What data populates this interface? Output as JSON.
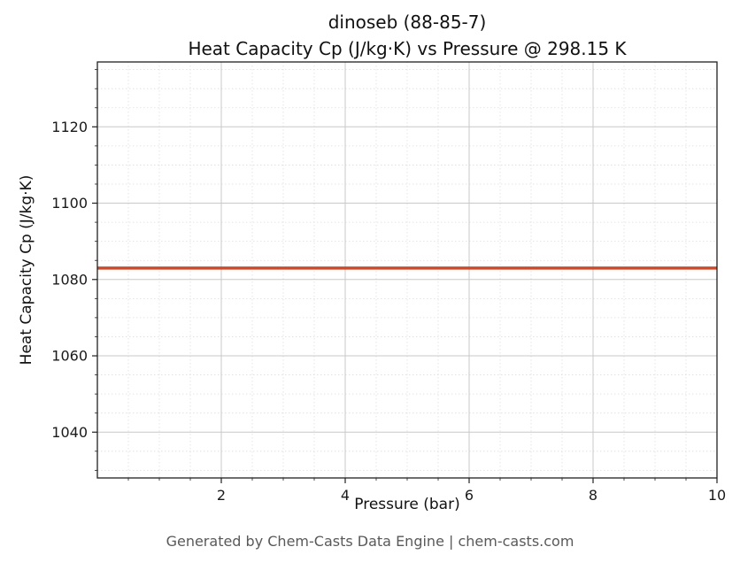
{
  "header": {
    "line1": "dinoseb (88-85-7)",
    "line2": "Heat Capacity Cp (J/kg·K) vs Pressure @ 298.15 K"
  },
  "footer": {
    "text": "Generated by Chem-Casts Data Engine | chem-casts.com"
  },
  "chart_data": {
    "type": "line",
    "title": "dinoseb (88-85-7) — Heat Capacity Cp (J/kg·K) vs Pressure @ 298.15 K",
    "xlabel": "Pressure (bar)",
    "ylabel": "Heat Capacity Cp (J/kg·K)",
    "series": [
      {
        "name": "Heat Capacity Cp",
        "x": [
          0,
          1,
          2,
          3,
          4,
          5,
          6,
          7,
          8,
          9,
          10
        ],
        "y": [
          1083,
          1083,
          1083,
          1083,
          1083,
          1083,
          1083,
          1083,
          1083,
          1083,
          1083
        ],
        "constant_value": 1083,
        "color": "#cd4a2a",
        "line_width": 3.5
      }
    ],
    "xlim": [
      0,
      10
    ],
    "ylim": [
      1028,
      1137
    ],
    "xticks": [
      2,
      4,
      6,
      8,
      10
    ],
    "yticks": [
      1040,
      1060,
      1080,
      1100,
      1120
    ],
    "x_minor_step": 0.5,
    "y_minor_step": 5,
    "grid": true,
    "legend_position": "none",
    "major_grid_color": "#c8c8c8",
    "minor_grid_color": "#dedede",
    "border_color": "#202020"
  }
}
